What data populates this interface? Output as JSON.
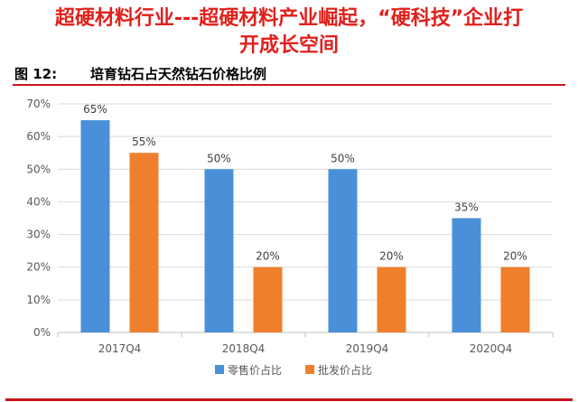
{
  "headline": {
    "line1": "超硬材料行业---超硬材料产业崛起，“硬科技”企业打",
    "line2": "开成长空间"
  },
  "figure": {
    "label": "图 12:",
    "title": "培育钻石占天然钻石价格比例"
  },
  "chart_data": {
    "type": "bar",
    "categories": [
      "2017Q4",
      "2018Q4",
      "2019Q4",
      "2020Q4"
    ],
    "series": [
      {
        "name": "零售价占比",
        "values": [
          65,
          50,
          50,
          35
        ],
        "labels": [
          "65%",
          "50%",
          "50%",
          "35%"
        ],
        "color": "#4a90d9"
      },
      {
        "name": "批发价占比",
        "values": [
          55,
          20,
          20,
          20
        ],
        "labels": [
          "55%",
          "20%",
          "20%",
          "20%"
        ],
        "color": "#f07f2d"
      }
    ],
    "ylim": [
      0,
      70
    ],
    "yticks": [
      "0%",
      "10%",
      "20%",
      "30%",
      "40%",
      "50%",
      "60%",
      "70%"
    ],
    "grid": true,
    "legend": "bottom-center"
  }
}
